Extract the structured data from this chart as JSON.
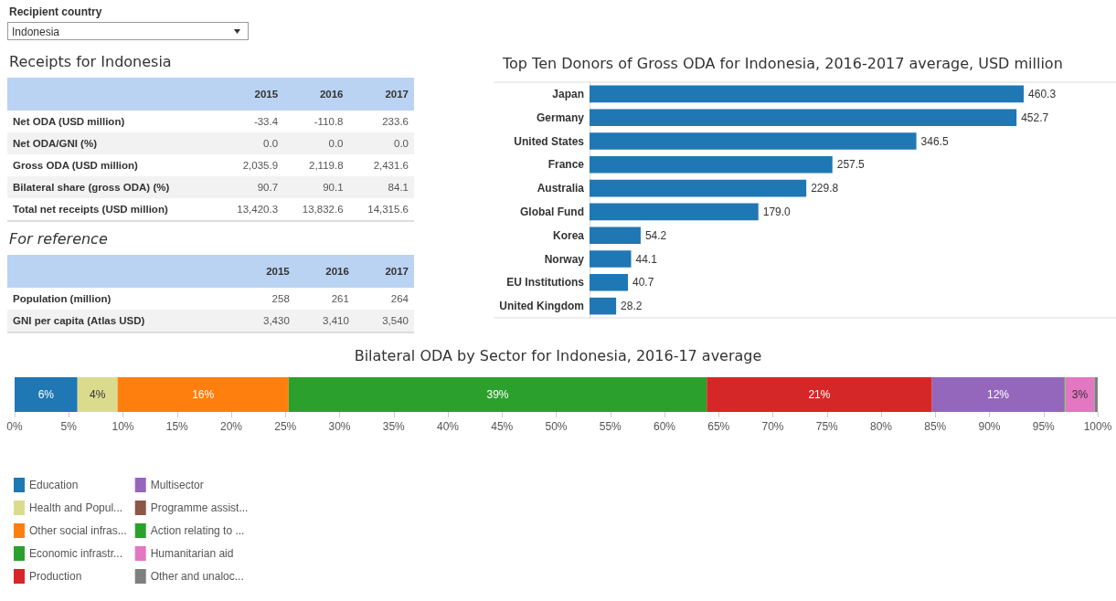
{
  "chart_data": [
    {
      "type": "other",
      "title": "Recipient country",
      "annotations": [
        "Indonesia"
      ]
    },
    {
      "type": "other",
      "title": "Receipts for Indonesia",
      "categories": [
        "2015",
        "2016",
        "2017"
      ],
      "y_categories": [
        "Net ODA (USD million)",
        "Net ODA/GNI (%)",
        "Gross ODA (USD million)",
        "Bilateral share (gross ODA) (%)",
        "Total net receipts (USD million)"
      ],
      "cell_labels": [
        [
          "-33.4",
          "-110.8",
          "233.6"
        ],
        [
          "0.0",
          "0.0",
          "0.0"
        ],
        [
          "2,035.9",
          "2,119.8",
          "2,431.6"
        ],
        [
          "90.7",
          "90.1",
          "84.1"
        ],
        [
          "13,420.3",
          "13,832.6",
          "14,315.6"
        ]
      ]
    },
    {
      "type": "other",
      "title": "For reference",
      "categories": [
        "2015",
        "2016",
        "2017"
      ],
      "y_categories": [
        "Population (million)",
        "GNI per capita (Atlas USD)"
      ],
      "cell_labels": [
        [
          "258",
          "261",
          "264"
        ],
        [
          "3,430",
          "3,410",
          "3,540"
        ]
      ]
    },
    {
      "type": "bar",
      "title": "Top Ten Donors of Gross ODA for Indonesia, 2016-2017 average, USD million",
      "orientation": "horizontal",
      "categories": [
        "Japan",
        "Germany",
        "United States",
        "France",
        "Australia",
        "Global Fund",
        "Korea",
        "Norway",
        "EU Institutions",
        "United Kingdom"
      ],
      "values": [
        460.3,
        452.7,
        346.5,
        257.5,
        229.8,
        179.0,
        54.2,
        44.1,
        40.7,
        28.2
      ],
      "value_labels": [
        "460.3",
        "452.7",
        "346.5",
        "257.5",
        "229.8",
        "179.0",
        "54.2",
        "44.1",
        "40.7",
        "28.2"
      ],
      "color": "#1f77b4",
      "tick_labels": "y",
      "grid": false,
      "legend": false
    },
    {
      "type": "bar",
      "title": "Bilateral ODA by Sector for Indonesia, 2016-17 average",
      "orientation": "horizontal",
      "stacked": true,
      "categories": [
        null
      ],
      "xlim": [
        0,
        100
      ],
      "xticks": [
        {
          "value": 0,
          "label": "0%"
        },
        {
          "value": 5,
          "label": "5%"
        },
        {
          "value": 10,
          "label": "10%"
        },
        {
          "value": 15,
          "label": "15%"
        },
        {
          "value": 20,
          "label": "20%"
        },
        {
          "value": 25,
          "label": "25%"
        },
        {
          "value": 30,
          "label": "30%"
        },
        {
          "value": 35,
          "label": "35%"
        },
        {
          "value": 40,
          "label": "40%"
        },
        {
          "value": 45,
          "label": "45%"
        },
        {
          "value": 50,
          "label": "50%"
        },
        {
          "value": 55,
          "label": "55%"
        },
        {
          "value": 60,
          "label": "60%"
        },
        {
          "value": 65,
          "label": "65%"
        },
        {
          "value": 70,
          "label": "70%"
        },
        {
          "value": 75,
          "label": "75%"
        },
        {
          "value": 80,
          "label": "80%"
        },
        {
          "value": 85,
          "label": "85%"
        },
        {
          "value": 90,
          "label": "90%"
        },
        {
          "value": 95,
          "label": "95%"
        },
        {
          "value": 100,
          "label": "100%"
        }
      ],
      "tick_labels": "x",
      "grid": false,
      "legend": "bottom left",
      "series": [
        {
          "name": "Education",
          "color": "#1f77b4",
          "values": [
            5.8
          ],
          "value_labels": [
            "6%"
          ]
        },
        {
          "name": "Health and Popul...",
          "color": "#dbdb8d",
          "values": [
            3.7
          ],
          "value_labels": [
            "4%"
          ]
        },
        {
          "name": "Other social infras...",
          "color": "#ff7f0e",
          "values": [
            15.8
          ],
          "value_labels": [
            "16%"
          ]
        },
        {
          "name": "Economic infrastr...",
          "color": "#2ca02c",
          "values": [
            38.6
          ],
          "value_labels": [
            "39%"
          ]
        },
        {
          "name": "Production",
          "color": "#d62728",
          "values": [
            20.8
          ],
          "value_labels": [
            "21%"
          ]
        },
        {
          "name": "Multisector",
          "color": "#9467bd",
          "values": [
            12.2
          ],
          "value_labels": [
            "12%"
          ]
        },
        {
          "name": "Programme assist...",
          "color": "#8c564b",
          "values": [
            0
          ],
          "value_labels": [
            null
          ]
        },
        {
          "name": "Action relating to ...",
          "color": "#2ca02c",
          "values": [
            0.1
          ],
          "value_labels": [
            null
          ]
        },
        {
          "name": "Humanitarian aid",
          "color": "#e377c2",
          "values": [
            2.7
          ],
          "value_labels": [
            "3%"
          ]
        },
        {
          "name": "Other and unaloc...",
          "color": "#7f7f7f",
          "values": [
            0.3
          ],
          "value_labels": [
            null
          ]
        }
      ]
    }
  ]
}
